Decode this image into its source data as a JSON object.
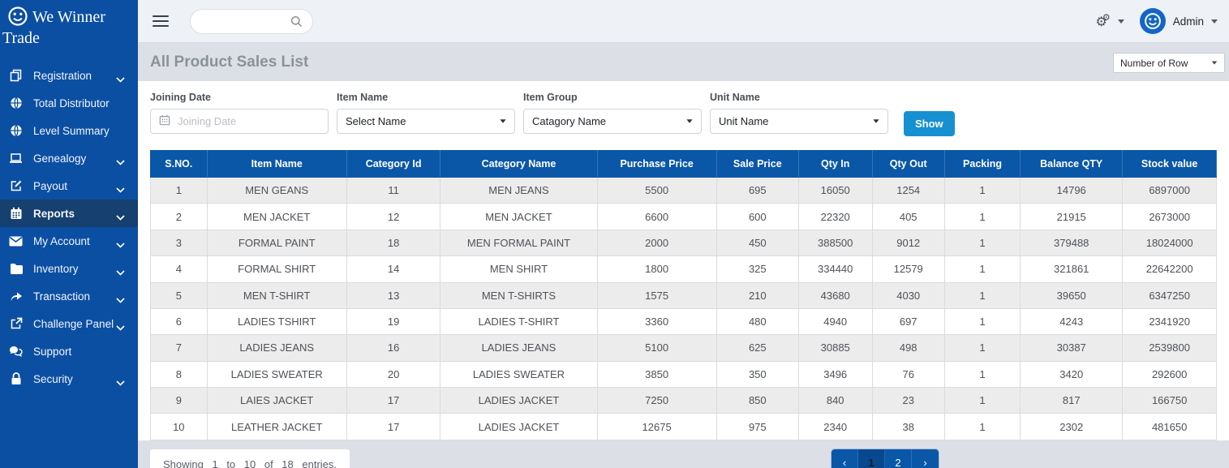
{
  "brand": {
    "title": "We Winner Trade",
    "logo_icon": "smiley-icon"
  },
  "topbar": {
    "search": {
      "placeholder": "",
      "value": "",
      "icon": "search-icon"
    },
    "settings_icon": "gears-icon",
    "user": {
      "name": "Admin",
      "avatar_icon": "smiley-icon"
    }
  },
  "sidebar": {
    "items": [
      {
        "label": "Registration",
        "icon": "copy-icon",
        "chevron": true,
        "active": false
      },
      {
        "label": "Total Distributor",
        "icon": "globe-icon",
        "chevron": false,
        "active": false
      },
      {
        "label": "Level Summary",
        "icon": "globe-icon",
        "chevron": false,
        "active": false
      },
      {
        "label": "Genealogy",
        "icon": "laptop-icon",
        "chevron": true,
        "active": false
      },
      {
        "label": "Payout",
        "icon": "edit-icon",
        "chevron": true,
        "active": false
      },
      {
        "label": "Reports",
        "icon": "calendar-icon",
        "chevron": true,
        "active": true
      },
      {
        "label": "My Account",
        "icon": "envelope-icon",
        "chevron": true,
        "active": false
      },
      {
        "label": "Inventory",
        "icon": "folder-icon",
        "chevron": true,
        "active": false
      },
      {
        "label": "Transaction",
        "icon": "share-icon",
        "chevron": true,
        "active": false
      },
      {
        "label": "Challenge Panel",
        "icon": "external-link-icon",
        "chevron": true,
        "active": false
      },
      {
        "label": "Support",
        "icon": "comments-icon",
        "chevron": false,
        "active": false
      },
      {
        "label": "Security",
        "icon": "lock-icon",
        "chevron": true,
        "active": false
      }
    ]
  },
  "page": {
    "title": "All Product Sales List",
    "rows_select_label": "Number of Row"
  },
  "filters": {
    "joining_date": {
      "label": "Joining Date",
      "placeholder": "Joining Date",
      "value": "",
      "icon": "calendar-icon"
    },
    "item_name": {
      "label": "Item Name",
      "selected": "Select Name"
    },
    "item_group": {
      "label": "Item Group",
      "selected": "Catagory Name"
    },
    "unit_name": {
      "label": "Unit Name",
      "selected": "Unit Name"
    },
    "show_button_label": "Show"
  },
  "table": {
    "columns": [
      "S.NO.",
      "Item Name",
      "Category Id",
      "Category Name",
      "Purchase Price",
      "Sale Price",
      "Qty In",
      "Qty Out",
      "Packing",
      "Balance QTY",
      "Stock value"
    ],
    "rows": [
      [
        "1",
        "MEN GEANS",
        "11",
        "MEN JEANS",
        "5500",
        "695",
        "16050",
        "1254",
        "1",
        "14796",
        "6897000"
      ],
      [
        "2",
        "MEN JACKET",
        "12",
        "MEN JACKET",
        "6600",
        "600",
        "22320",
        "405",
        "1",
        "21915",
        "2673000"
      ],
      [
        "3",
        "FORMAL PAINT",
        "18",
        "MEN FORMAL PAINT",
        "2000",
        "450",
        "388500",
        "9012",
        "1",
        "379488",
        "18024000"
      ],
      [
        "4",
        "FORMAL SHIRT",
        "14",
        "MEN SHIRT",
        "1800",
        "325",
        "334440",
        "12579",
        "1",
        "321861",
        "22642200"
      ],
      [
        "5",
        "MEN T-SHIRT",
        "13",
        "MEN T-SHIRTS",
        "1575",
        "210",
        "43680",
        "4030",
        "1",
        "39650",
        "6347250"
      ],
      [
        "6",
        "LADIES TSHIRT",
        "19",
        "LADIES T-SHIRT",
        "3360",
        "480",
        "4940",
        "697",
        "1",
        "4243",
        "2341920"
      ],
      [
        "7",
        "LADIES JEANS",
        "16",
        "LADIES JEANS",
        "5100",
        "625",
        "30885",
        "498",
        "1",
        "30387",
        "2539800"
      ],
      [
        "8",
        "LADIES SWEATER",
        "20",
        "LADIES SWEATER",
        "3850",
        "350",
        "3496",
        "76",
        "1",
        "3420",
        "292600"
      ],
      [
        "9",
        "LAIES JACKET",
        "17",
        "LADIES JACKET",
        "7250",
        "850",
        "840",
        "23",
        "1",
        "817",
        "166750"
      ],
      [
        "10",
        "LEATHER JACKET",
        "17",
        "LADIES JACKET",
        "12675",
        "975",
        "2340",
        "38",
        "1",
        "2302",
        "481650"
      ]
    ]
  },
  "footer": {
    "showing_text": "Showing 1 to 10 of 18 entries.",
    "pagination": {
      "prev": "‹",
      "pages": [
        "1",
        "2"
      ],
      "next": "›",
      "active_page": "1"
    }
  },
  "colors": {
    "sidebar_bg": "#0b4fa3",
    "sidebar_active_bg": "#15406f",
    "table_header_bg": "#0a57a8",
    "pagination_active_bg": "#07498f",
    "show_button_bg": "#1790d2",
    "avatar_bg": "#1266c8",
    "topbar_bg": "#eef1f6",
    "content_bg": "#dce0e6",
    "row_stripe": "#ececec"
  }
}
